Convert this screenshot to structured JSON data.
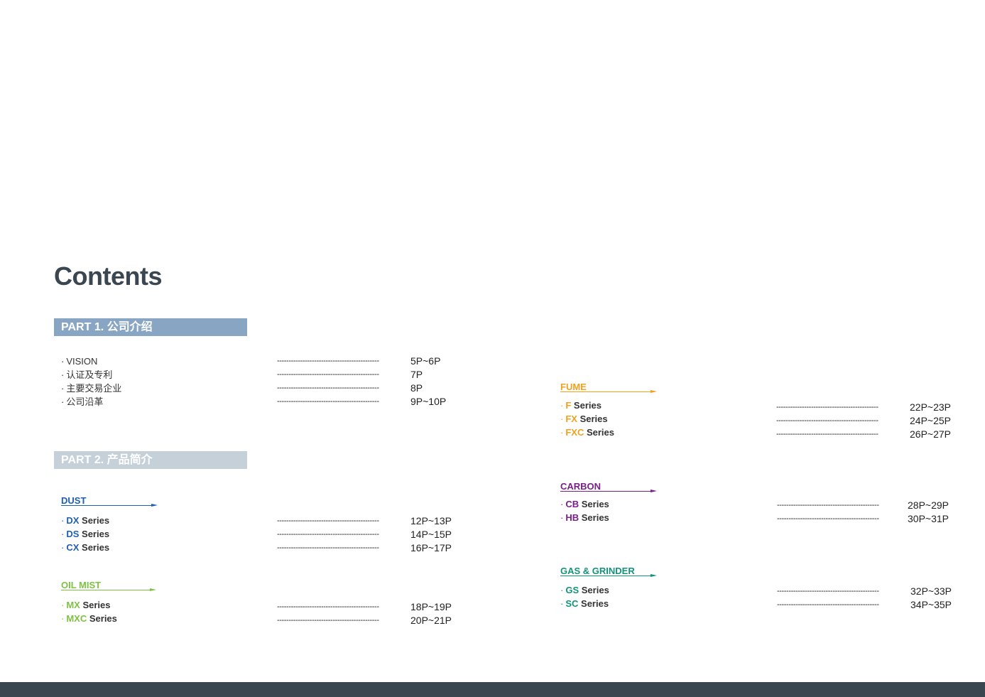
{
  "title": "Contents",
  "part1": {
    "label": "PART 1. 公司介绍",
    "items": [
      {
        "text": "VISION",
        "leader": "--------------------------------------------",
        "page": "5P~6P"
      },
      {
        "text": "认证及专利",
        "leader": "--------------------------------------------",
        "page": "7P"
      },
      {
        "text": "主要交易企业",
        "leader": "--------------------------------------------",
        "page": "8P"
      },
      {
        "text": "公司沿革",
        "leader": "--------------------------------------------",
        "page": "9P~10P"
      }
    ]
  },
  "part2": {
    "label": "PART 2. 产品简介"
  },
  "categories": {
    "dust": {
      "label": "DUST",
      "color": "#1f5fb0",
      "items": [
        {
          "code": "DX",
          "series": "Series",
          "leader": "--------------------------------------------",
          "page": "12P~13P"
        },
        {
          "code": "DS",
          "series": "Series",
          "leader": "--------------------------------------------",
          "page": "14P~15P"
        },
        {
          "code": "CX",
          "series": "Series",
          "leader": "--------------------------------------------",
          "page": "16P~17P"
        }
      ]
    },
    "oil_mist": {
      "label": "OIL MIST",
      "color": "#7dc242",
      "items": [
        {
          "code": "MX",
          "series": "Series",
          "leader": "--------------------------------------------",
          "page": "18P~19P"
        },
        {
          "code": "MXC",
          "series": "Series",
          "leader": "--------------------------------------------",
          "page": "20P~21P"
        }
      ]
    },
    "fume": {
      "label": "FUME",
      "color": "#f0a11f",
      "items": [
        {
          "code": "F",
          "series": "Series",
          "leader": "--------------------------------------------",
          "page": "22P~23P"
        },
        {
          "code": "FX",
          "series": "Series",
          "leader": "--------------------------------------------",
          "page": "24P~25P"
        },
        {
          "code": "FXC",
          "series": "Series",
          "leader": "--------------------------------------------",
          "page": "26P~27P"
        }
      ]
    },
    "carbon": {
      "label": "CARBON",
      "color": "#7a1f8a",
      "items": [
        {
          "code": "CB",
          "series": "Series",
          "leader": "--------------------------------------------",
          "page": "28P~29P"
        },
        {
          "code": "HB",
          "series": "Series",
          "leader": "--------------------------------------------",
          "page": "30P~31P"
        }
      ]
    },
    "gas": {
      "label": "GAS & GRINDER",
      "color": "#12937a",
      "items": [
        {
          "code": "GS",
          "series": "Series",
          "leader": "--------------------------------------------",
          "page": "32P~33P"
        },
        {
          "code": "SC",
          "series": "Series",
          "leader": "--------------------------------------------",
          "page": "34P~35P"
        }
      ]
    }
  }
}
